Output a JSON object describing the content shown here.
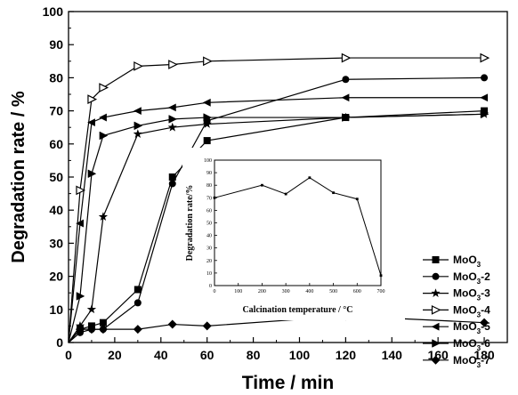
{
  "chart_data": [
    {
      "type": "line",
      "title": "",
      "xlabel": "Time / min",
      "ylabel": "Degradation rate / %",
      "xlim": [
        0,
        190
      ],
      "ylim": [
        0,
        100
      ],
      "xticks": [
        0,
        20,
        40,
        60,
        80,
        100,
        120,
        140,
        160,
        180
      ],
      "yticks": [
        0,
        10,
        20,
        30,
        40,
        50,
        60,
        70,
        80,
        90,
        100
      ],
      "legend_position": "right",
      "series": [
        {
          "name": "MoO3",
          "marker": "square",
          "x": [
            0,
            5,
            10,
            15,
            30,
            45,
            60,
            120,
            180
          ],
          "y": [
            0,
            4,
            5,
            6,
            16,
            50,
            61,
            68,
            70
          ]
        },
        {
          "name": "MoO3-2",
          "marker": "circle",
          "x": [
            0,
            5,
            10,
            15,
            30,
            45,
            60,
            120,
            180
          ],
          "y": [
            0,
            3,
            4,
            4,
            12,
            48,
            67,
            79.5,
            80
          ]
        },
        {
          "name": "MoO3-3",
          "marker": "star",
          "x": [
            0,
            5,
            10,
            15,
            30,
            45,
            60,
            120,
            180
          ],
          "y": [
            0,
            5,
            10,
            38,
            63,
            65,
            66,
            68,
            69
          ]
        },
        {
          "name": "MoO3-4",
          "marker": "triangle-right-open",
          "x": [
            0,
            5,
            10,
            15,
            30,
            45,
            60,
            120,
            180
          ],
          "y": [
            0,
            46,
            73.5,
            77,
            83.5,
            84,
            85,
            86,
            86
          ]
        },
        {
          "name": "MoO3-5",
          "marker": "triangle-left",
          "x": [
            0,
            5,
            10,
            15,
            30,
            45,
            60,
            120,
            180
          ],
          "y": [
            0,
            36,
            66.5,
            68,
            70,
            71,
            72.5,
            74,
            74
          ]
        },
        {
          "name": "MoO3-6",
          "marker": "triangle-right",
          "x": [
            0,
            5,
            10,
            15,
            30,
            45,
            60,
            120,
            180
          ],
          "y": [
            0,
            14,
            51,
            62.5,
            65.5,
            67.5,
            68,
            68,
            69
          ]
        },
        {
          "name": "MoO3-7",
          "marker": "diamond",
          "x": [
            0,
            5,
            10,
            15,
            30,
            45,
            60,
            120,
            180
          ],
          "y": [
            0,
            4,
            4,
            4,
            4,
            5.5,
            5,
            8,
            6
          ]
        }
      ]
    },
    {
      "type": "line",
      "title": "",
      "xlabel": "Calcination temperature / °C",
      "ylabel": "Degradation rate/%",
      "xlim": [
        0,
        700
      ],
      "ylim": [
        0,
        100
      ],
      "xticks": [
        0,
        100,
        200,
        300,
        400,
        500,
        600,
        700
      ],
      "yticks": [
        0,
        10,
        20,
        30,
        40,
        50,
        60,
        70,
        80,
        90,
        100
      ],
      "series": [
        {
          "x": [
            0,
            200,
            300,
            400,
            500,
            600,
            700
          ],
          "y": [
            70,
            80,
            73,
            86,
            74,
            69,
            8
          ]
        }
      ]
    }
  ]
}
